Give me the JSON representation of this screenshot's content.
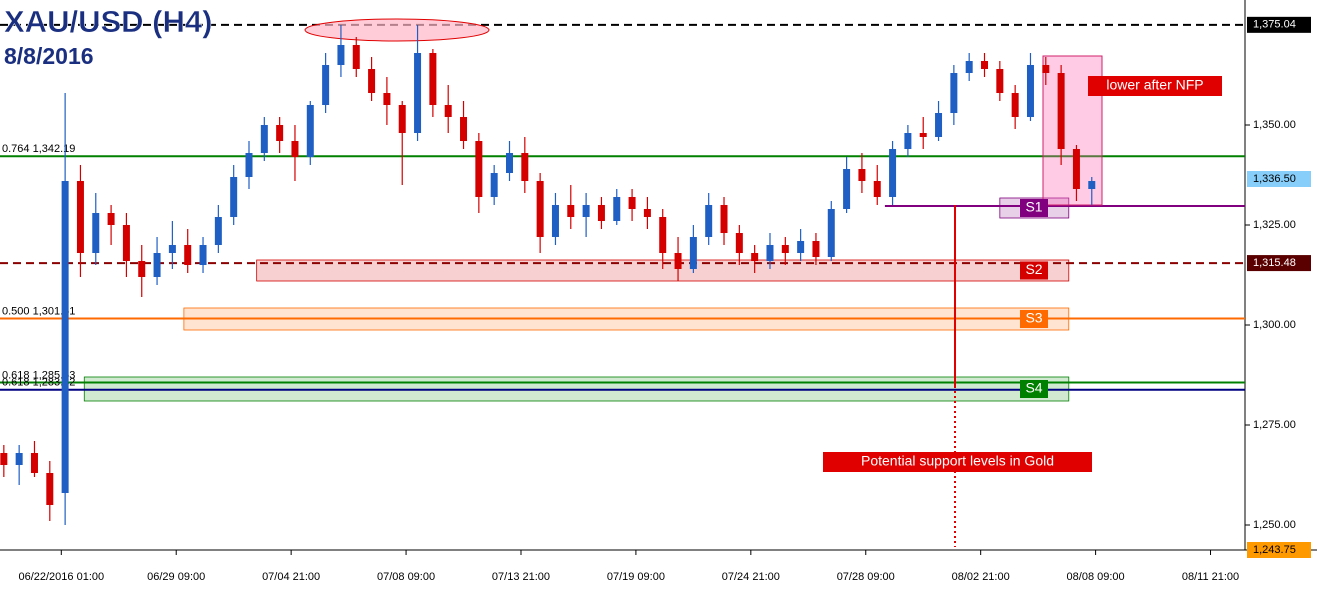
{
  "chart_data": {
    "type": "candlestick",
    "title": "XAU/USD (H4)",
    "subtitle": "8/8/2016",
    "up_color": "#1f5fc4",
    "down_color": "#d40000",
    "x": [
      -15,
      -11,
      -7,
      -3,
      1,
      5,
      9,
      13,
      17,
      21,
      25,
      29,
      33,
      37,
      41,
      45,
      49,
      53,
      57,
      61,
      65,
      69,
      73,
      77,
      81,
      85,
      89,
      93,
      97,
      101,
      105,
      109,
      113,
      117,
      121,
      125,
      129,
      133,
      137,
      141,
      145,
      149,
      153,
      157,
      161,
      165,
      169,
      173,
      177,
      181,
      185,
      189,
      193,
      197,
      201,
      205,
      209,
      213,
      217,
      221,
      225,
      229,
      233,
      237,
      241,
      245,
      249,
      253,
      257,
      261,
      265,
      269
    ],
    "open": [
      1268,
      1265,
      1268,
      1263,
      1258,
      1336,
      1318,
      1328,
      1325,
      1316,
      1312,
      1318,
      1320,
      1315,
      1320,
      1327,
      1337,
      1343,
      1350,
      1346,
      1342,
      1355,
      1365,
      1370,
      1364,
      1358,
      1355,
      1348,
      1368,
      1355,
      1352,
      1346,
      1332,
      1338,
      1343,
      1336,
      1322,
      1330,
      1327,
      1330,
      1326,
      1332,
      1329,
      1327,
      1318,
      1314,
      1322,
      1330,
      1323,
      1318,
      1316,
      1320,
      1318,
      1321,
      1317,
      1329,
      1339,
      1336,
      1332,
      1344,
      1348,
      1347,
      1353,
      1363,
      1366,
      1364,
      1358,
      1352,
      1365,
      1363,
      1344,
      1334
    ],
    "high": [
      1270,
      1270,
      1271,
      1266,
      1358,
      1340,
      1333,
      1330,
      1328,
      1320,
      1322,
      1326,
      1324,
      1322,
      1330,
      1340,
      1346,
      1352,
      1352,
      1350,
      1356,
      1368,
      1375,
      1372,
      1367,
      1362,
      1356,
      1375,
      1369,
      1360,
      1356,
      1348,
      1340,
      1346,
      1347,
      1338,
      1333,
      1335,
      1333,
      1332,
      1334,
      1334,
      1332,
      1329,
      1322,
      1325,
      1333,
      1332,
      1325,
      1320,
      1323,
      1322,
      1324,
      1323,
      1331,
      1342,
      1343,
      1340,
      1346,
      1350,
      1352,
      1356,
      1365,
      1368,
      1368,
      1366,
      1360,
      1368,
      1367,
      1365,
      1345,
      1337
    ],
    "low": [
      1262,
      1260,
      1262,
      1251,
      1250,
      1312,
      1315,
      1320,
      1312,
      1307,
      1310,
      1314,
      1313,
      1313,
      1318,
      1325,
      1334,
      1341,
      1343,
      1336,
      1340,
      1353,
      1362,
      1362,
      1356,
      1350,
      1335,
      1346,
      1352,
      1348,
      1344,
      1328,
      1330,
      1336,
      1333,
      1318,
      1320,
      1324,
      1322,
      1324,
      1325,
      1326,
      1324,
      1314,
      1311,
      1313,
      1320,
      1320,
      1315,
      1313,
      1314,
      1315,
      1316,
      1315,
      1316,
      1328,
      1333,
      1330,
      1330,
      1342,
      1344,
      1346,
      1350,
      1361,
      1362,
      1356,
      1349,
      1351,
      1360,
      1340,
      1331,
      1330
    ],
    "close": [
      1265,
      1268,
      1263,
      1255,
      1336,
      1318,
      1328,
      1325,
      1316,
      1312,
      1318,
      1320,
      1315,
      1320,
      1327,
      1337,
      1343,
      1350,
      1346,
      1342,
      1355,
      1365,
      1370,
      1364,
      1358,
      1355,
      1348,
      1368,
      1355,
      1352,
      1346,
      1332,
      1338,
      1343,
      1336,
      1322,
      1330,
      1327,
      1330,
      1326,
      1332,
      1329,
      1327,
      1318,
      1314,
      1322,
      1330,
      1323,
      1318,
      1316,
      1320,
      1318,
      1321,
      1317,
      1329,
      1339,
      1336,
      1332,
      1344,
      1348,
      1347,
      1353,
      1363,
      1366,
      1364,
      1358,
      1352,
      1365,
      1363,
      1344,
      1334,
      1336
    ],
    "xlim": [
      -16,
      309
    ],
    "ylim": [
      1243.75,
      1381.25
    ],
    "xticks": [
      {
        "value": 0,
        "label": "06/22/2016 01:00"
      },
      {
        "value": 30,
        "label": "06/29 09:00"
      },
      {
        "value": 60,
        "label": "07/04 21:00"
      },
      {
        "value": 90,
        "label": "07/08 09:00"
      },
      {
        "value": 120,
        "label": "07/13 21:00"
      },
      {
        "value": 150,
        "label": "07/19 09:00"
      },
      {
        "value": 180,
        "label": "07/24 21:00"
      },
      {
        "value": 210,
        "label": "07/28 09:00"
      },
      {
        "value": 240,
        "label": "08/02 21:00"
      },
      {
        "value": 270,
        "label": "08/08 09:00"
      },
      {
        "value": 300,
        "label": "08/11 21:00"
      }
    ],
    "yticks": [
      {
        "value": 1250,
        "label": "1,250.00"
      },
      {
        "value": 1275,
        "label": "1,275.00"
      },
      {
        "value": 1300,
        "label": "1,300.00"
      },
      {
        "value": 1325,
        "label": "1,325.00"
      },
      {
        "value": 1350,
        "label": "1,350.00"
      }
    ],
    "levels": [
      {
        "value": 1375.04,
        "color": "#000000",
        "dash": "8,5"
      },
      {
        "value": 1342.19,
        "label": "0.764 1,342.19",
        "color": "#008000"
      },
      {
        "value": 1315.48,
        "color": "#8b0000",
        "dash": "8,5"
      },
      {
        "value": 1301.61,
        "label": "0.500 1,301.61",
        "color": "#ff6a00"
      },
      {
        "value": 1285.63,
        "label": "0.618 1,285.63",
        "color": "#008000"
      },
      {
        "value": 1283.82,
        "label": "0.618 1,283.82",
        "color": "#000080"
      },
      {
        "value": 1329.75,
        "color": "#800080",
        "from": 215
      }
    ],
    "price_labels": [
      {
        "value": 1375.04,
        "label": "1,375.04",
        "bg": "#000000",
        "fg": "#ffffff"
      },
      {
        "value": 1336.5,
        "label": "1,336.50",
        "bg": "#87cefa",
        "fg": "#000000"
      },
      {
        "value": 1315.48,
        "label": "1,315.48",
        "bg": "#5a0000",
        "fg": "#ffffff"
      },
      {
        "value": 1243.75,
        "label": "1,243.75",
        "bg": "#ff9900",
        "fg": "#000000"
      }
    ],
    "zones": [
      {
        "label": "S1",
        "from": 245,
        "to": 263,
        "low": 1326.75,
        "high": 1331.75,
        "color": "#800080"
      },
      {
        "label": "S2",
        "from": 51,
        "to": 263,
        "low": 1311,
        "high": 1316.25,
        "color": "#d40000"
      },
      {
        "label": "S3",
        "from": 32,
        "to": 263,
        "low": 1298.75,
        "high": 1304.25,
        "color": "#ff6a00"
      },
      {
        "label": "S4",
        "from": 6,
        "to": 263,
        "low": 1281,
        "high": 1287,
        "color": "#008000"
      }
    ],
    "annotations": [
      "lower after NFP",
      "Potential support levels in Gold"
    ]
  }
}
